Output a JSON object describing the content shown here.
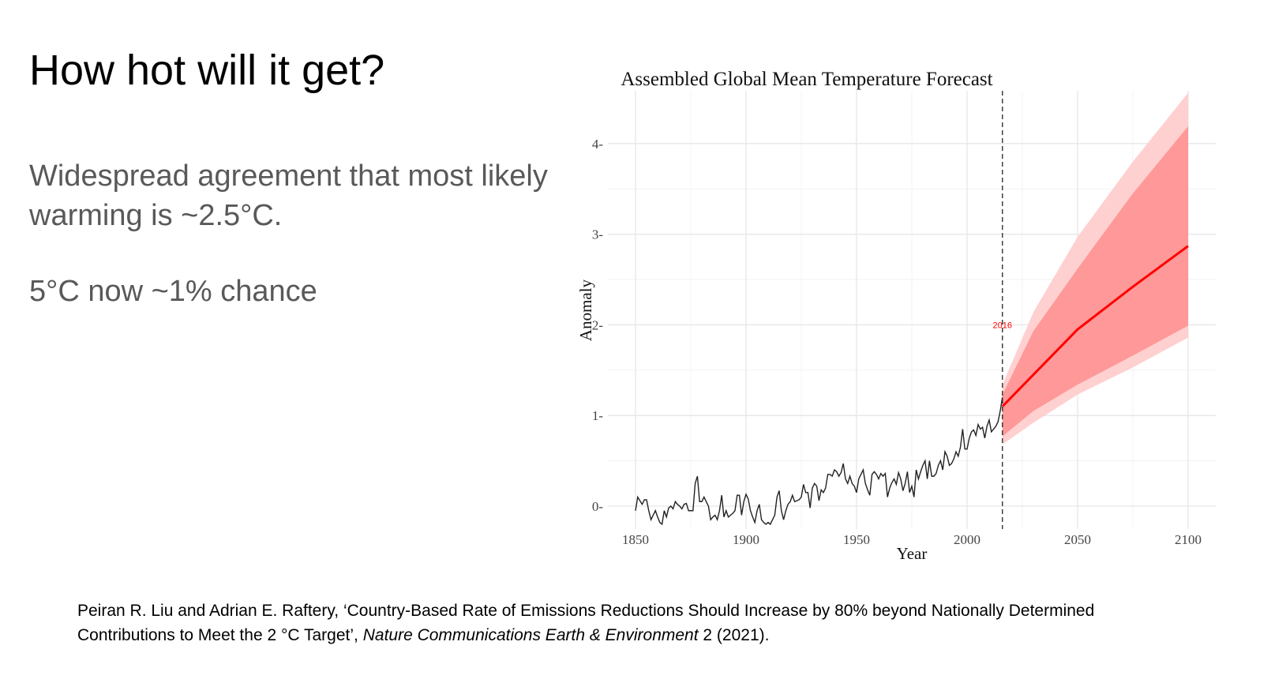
{
  "slide": {
    "title": "How hot will it get?",
    "body_line1": "Widespread agreement that most likely warming is ~2.5°C.",
    "body_line2": "5°C now ~1% chance",
    "citation": {
      "authors": "Peiran R. Liu and Adrian E. Raftery, ‘Country-Based Rate of Emissions Reductions Should Increase by 80% beyond Nationally Determined Contributions to Meet the 2 °C Target’,",
      "journal": "Nature Communications Earth & Environment",
      "tail": "2 (2021)."
    }
  },
  "chart_data": {
    "type": "line",
    "title": "Assembled Global Mean Temperature Forecast",
    "xlabel": "Year",
    "ylabel": "Anomaly",
    "xlim": [
      1838,
      2112
    ],
    "ylim": [
      -0.25,
      4.6
    ],
    "xticks": [
      1850,
      1900,
      1950,
      2000,
      2050,
      2100
    ],
    "yticks": [
      0,
      1,
      2,
      3,
      4
    ],
    "grid": true,
    "annotation": {
      "label": "2016",
      "x": 2016,
      "y": 2.0,
      "color": "#ff0000"
    },
    "colors": {
      "historical": "#222222",
      "median": "#ff0000",
      "inner_band": "#ff9898",
      "outer_band": "#ffd0d0"
    },
    "historical": {
      "start_year": 1850,
      "values": [
        -0.05,
        0.1,
        0.06,
        0.02,
        0.07,
        0.07,
        -0.05,
        -0.15,
        -0.1,
        -0.05,
        -0.12,
        -0.18,
        -0.2,
        -0.05,
        -0.12,
        -0.02,
        0.0,
        -0.03,
        0.05,
        0.02,
        0.0,
        -0.03,
        0.02,
        0.03,
        -0.05,
        -0.05,
        -0.05,
        0.25,
        0.33,
        0.05,
        0.05,
        0.1,
        0.05,
        0.0,
        -0.15,
        -0.12,
        -0.1,
        -0.15,
        -0.05,
        0.12,
        -0.12,
        -0.05,
        -0.12,
        -0.1,
        -0.08,
        -0.05,
        0.12,
        0.12,
        -0.1,
        0.05,
        0.13,
        0.08,
        -0.05,
        -0.12,
        -0.18,
        -0.05,
        0.02,
        -0.15,
        -0.18,
        -0.2,
        -0.18,
        -0.2,
        -0.15,
        -0.1,
        0.1,
        0.17,
        -0.05,
        -0.15,
        -0.05,
        0.02,
        0.05,
        0.12,
        0.05,
        0.06,
        0.07,
        0.1,
        0.24,
        0.15,
        0.15,
        -0.02,
        0.2,
        0.25,
        0.22,
        0.06,
        0.18,
        0.15,
        0.2,
        0.35,
        0.35,
        0.33,
        0.4,
        0.38,
        0.33,
        0.37,
        0.47,
        0.3,
        0.25,
        0.33,
        0.25,
        0.22,
        0.15,
        0.3,
        0.35,
        0.4,
        0.25,
        0.18,
        0.12,
        0.35,
        0.38,
        0.35,
        0.3,
        0.36,
        0.33,
        0.36,
        0.1,
        0.2,
        0.26,
        0.3,
        0.24,
        0.37,
        0.3,
        0.17,
        0.25,
        0.38,
        0.15,
        0.22,
        0.1,
        0.4,
        0.3,
        0.38,
        0.45,
        0.5,
        0.3,
        0.5,
        0.33,
        0.33,
        0.36,
        0.45,
        0.5,
        0.4,
        0.6,
        0.55,
        0.45,
        0.47,
        0.52,
        0.6,
        0.55,
        0.65,
        0.85,
        0.63,
        0.63,
        0.75,
        0.82,
        0.84,
        0.78,
        0.9,
        0.85,
        0.87,
        0.75,
        0.88,
        0.95,
        0.82,
        0.85,
        0.88,
        0.93,
        1.05,
        1.2
      ]
    },
    "forecast": {
      "years": [
        2016,
        2030,
        2050,
        2075,
        2100
      ],
      "median": [
        1.1,
        1.45,
        1.95,
        2.42,
        2.87
      ],
      "inner_upper": [
        1.23,
        1.93,
        2.62,
        3.45,
        4.19
      ],
      "inner_lower": [
        0.77,
        1.05,
        1.34,
        1.66,
        1.99
      ],
      "outer_upper": [
        1.34,
        2.14,
        2.97,
        3.8,
        4.56
      ],
      "outer_lower": [
        0.68,
        0.92,
        1.23,
        1.53,
        1.86
      ]
    }
  }
}
